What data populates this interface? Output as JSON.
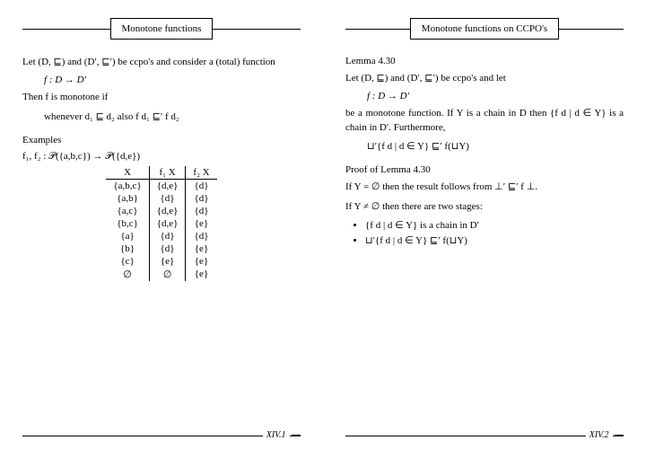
{
  "left": {
    "title": "Monotone functions",
    "p1": "Let (D, ⊑) and (D′, ⊑′) be ccpo's and consider a (total) function",
    "formula1": "f : D → D′",
    "p2": "Then f is monotone if",
    "formula2": "whenever d₁ ⊑ d₂ also f d₁ ⊑′ f d₂",
    "examples_head": "Examples",
    "func_sig": "f₁, f₂ : 𝒫({a,b,c}) → 𝒫({d,e})",
    "table": {
      "headers": [
        "X",
        "f₁ X",
        "f₂ X"
      ],
      "rows": [
        [
          "{a,b,c}",
          "{d,e}",
          "{d}"
        ],
        [
          "{a,b}",
          "{d}",
          "{d}"
        ],
        [
          "{a,c}",
          "{d,e}",
          "{d}"
        ],
        [
          "{b,c}",
          "{d,e}",
          "{e}"
        ],
        [
          "{a}",
          "{d}",
          "{d}"
        ],
        [
          "{b}",
          "{d}",
          "{e}"
        ],
        [
          "{c}",
          "{e}",
          "{e}"
        ],
        [
          "∅",
          "∅",
          "{e}"
        ]
      ]
    },
    "page_num": "XIV.1"
  },
  "right": {
    "title": "Monotone functions on CCPO's",
    "lemma_head": "Lemma 4.30",
    "p1": "Let (D, ⊑) and (D′, ⊑′) be ccpo's and let",
    "formula1": "f : D → D′",
    "p2": "be a monotone function.  If Y is a chain in D then {f d | d ∈ Y} is a chain in D′. Furthermore,",
    "formula2": "⊔′{f d | d ∈ Y} ⊑′ f(⊔Y)",
    "proof_head": "Proof of Lemma 4.30",
    "p3": "If Y = ∅ then the result follows from ⊥′ ⊑′ f ⊥.",
    "p4": "If Y ≠ ∅ then there are two stages:",
    "bullets": [
      "{f d | d ∈ Y} is a chain in D′",
      "⊔′{f d | d ∈ Y} ⊑′ f(⊔Y)"
    ],
    "page_num": "XIV.2"
  }
}
